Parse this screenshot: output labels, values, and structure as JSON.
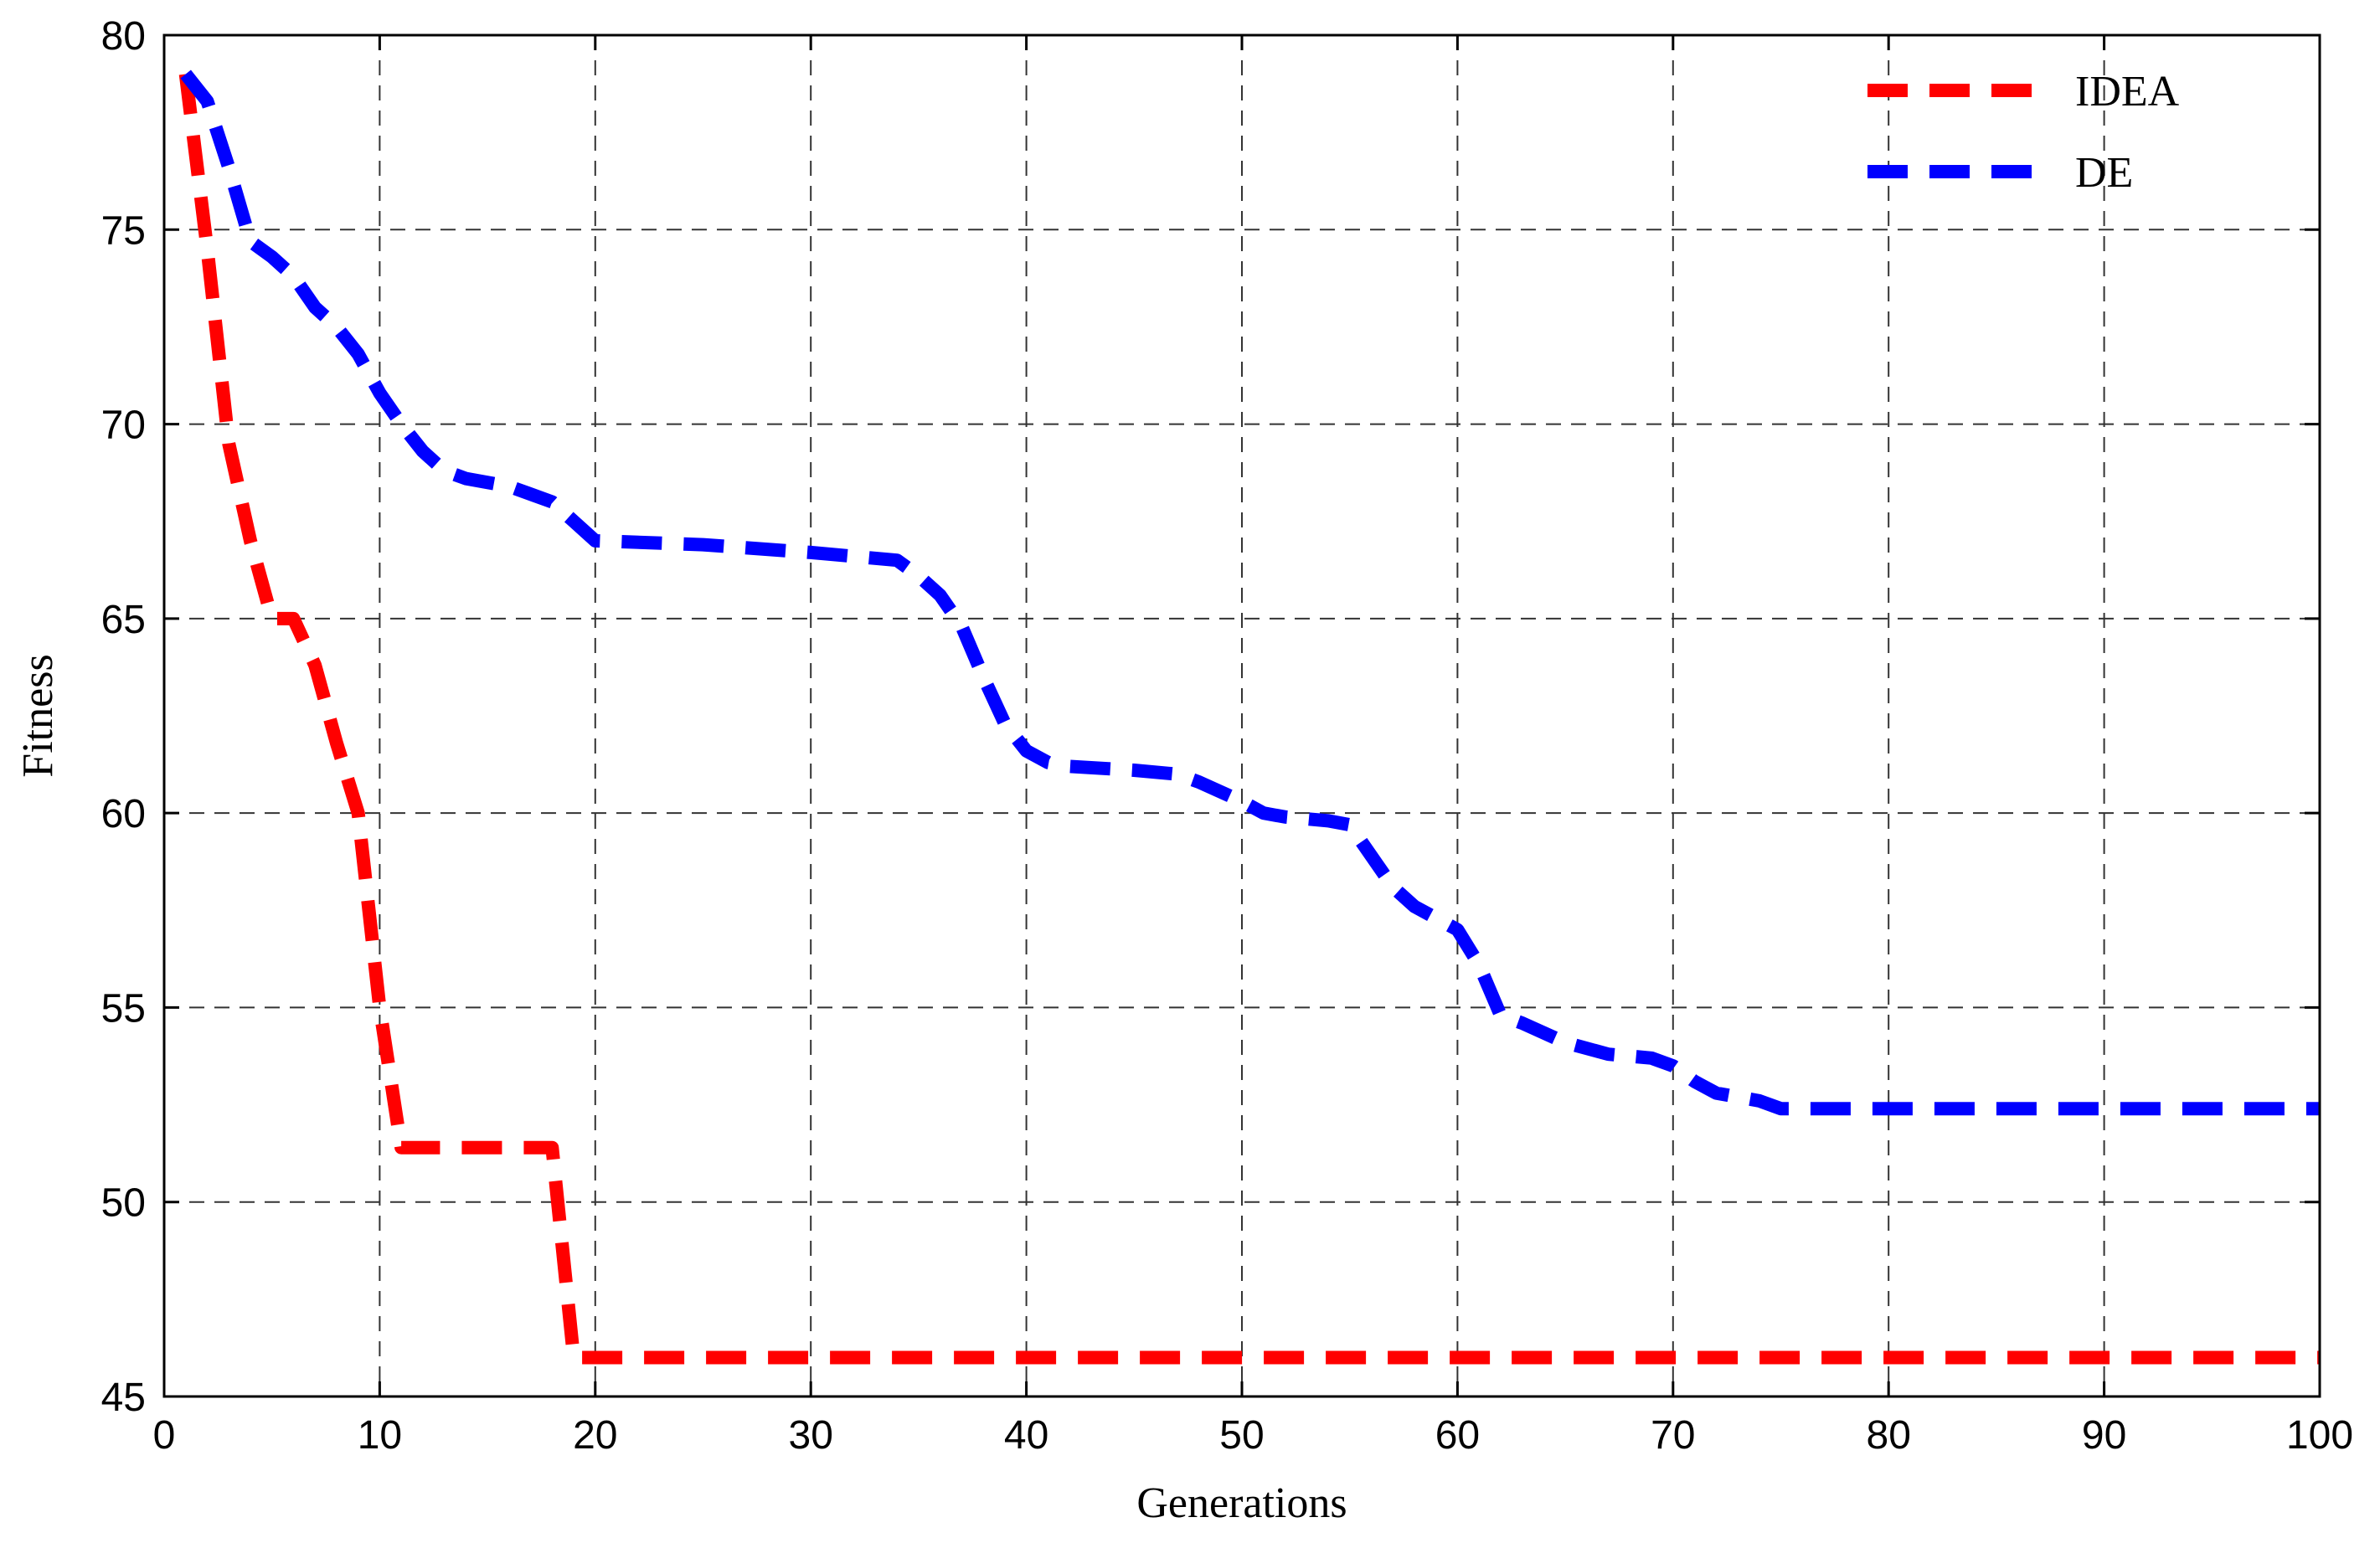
{
  "chart_data": {
    "type": "line",
    "xlabel": "Generations",
    "ylabel": "Fitness",
    "xlim": [
      0,
      100
    ],
    "ylim": [
      45,
      80
    ],
    "xticks": [
      0,
      10,
      20,
      30,
      40,
      50,
      60,
      70,
      80,
      90,
      100
    ],
    "yticks": [
      45,
      50,
      55,
      60,
      65,
      70,
      75,
      80
    ],
    "grid": true,
    "legend_position": "top-right",
    "series": [
      {
        "name": "IDEA",
        "color": "#ff0000",
        "x": [
          1,
          2,
          3,
          4,
          5,
          6,
          7,
          8,
          9,
          10,
          11,
          12,
          18,
          19,
          100
        ],
        "y": [
          79,
          74.5,
          69.5,
          67,
          65,
          65,
          63.8,
          61.8,
          60,
          55,
          51.4,
          51.4,
          51.4,
          46,
          46
        ]
      },
      {
        "name": "DE",
        "color": "#0000ff",
        "x": [
          1,
          2,
          3,
          4,
          5,
          6,
          7,
          8,
          9,
          10,
          11,
          12,
          13,
          14,
          15,
          16,
          17,
          18,
          19,
          20,
          25,
          30,
          34,
          35,
          36,
          37,
          38,
          39,
          40,
          41,
          42,
          45,
          47,
          48,
          50,
          51,
          52,
          54,
          55,
          57,
          58,
          60,
          61,
          62,
          63,
          65,
          67,
          69,
          70,
          71,
          72,
          74,
          75,
          76,
          100
        ],
        "y": [
          79,
          78.3,
          76.6,
          74.7,
          74.3,
          73.8,
          73,
          72.5,
          71.8,
          70.8,
          70,
          69.3,
          68.8,
          68.6,
          68.5,
          68.4,
          68.2,
          68,
          67.5,
          67,
          66.9,
          66.7,
          66.5,
          66.1,
          65.6,
          64.8,
          63.5,
          62.3,
          61.6,
          61.3,
          61.2,
          61.1,
          61,
          60.8,
          60.3,
          60,
          59.9,
          59.8,
          59.7,
          58.1,
          57.6,
          57,
          56.1,
          54.8,
          54.6,
          54.1,
          53.8,
          53.7,
          53.5,
          53.1,
          52.8,
          52.6,
          52.4,
          52.4,
          52.4
        ]
      }
    ]
  }
}
